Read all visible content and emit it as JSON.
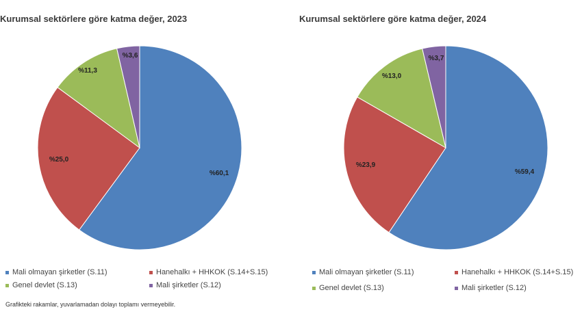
{
  "chart_data": [
    {
      "type": "pie",
      "title": "Kurumsal sektörlere göre katma değer, 2023",
      "categories": [
        "Mali olmayan şirketler (S.11)",
        "Hanehalkı + HHKOK (S.14+S.15)",
        "Genel devlet (S.13)",
        "Mali şirketler (S.12)"
      ],
      "values": [
        60.1,
        25.0,
        11.3,
        3.6
      ],
      "labels": [
        "%60,1",
        "%25,0",
        "%11,3",
        "%3,6"
      ],
      "colors": [
        "#4f81bd",
        "#c0504d",
        "#9bbb59",
        "#8064a2"
      ],
      "legend": "bottom"
    },
    {
      "type": "pie",
      "title": "Kurumsal sektörlere göre katma değer, 2024",
      "categories": [
        "Mali olmayan şirketler (S.11)",
        "Hanehalkı + HHKOK (S.14+S.15)",
        "Genel devlet (S.13)",
        "Mali şirketler (S.12)"
      ],
      "values": [
        59.4,
        23.9,
        13.0,
        3.7
      ],
      "labels": [
        "%59,4",
        "%23,9",
        "%13,0",
        "%3,7"
      ],
      "colors": [
        "#4f81bd",
        "#c0504d",
        "#9bbb59",
        "#8064a2"
      ],
      "legend": "bottom"
    }
  ],
  "legend_left": [
    "Mali olmayan şirketler (S.11)",
    "Hanehalkı + HHKOK (S.14+S.15)",
    "Genel devlet (S.13)",
    "Mali şirketler (S.12)"
  ],
  "legend_right": [
    "Mali olmayan şirketler (S.11)",
    "Hanehalkı + HHKOK (S.14+S.15)",
    "Genel devlet (S.13)",
    "Mali şirketler (S.12)"
  ],
  "footnote": "Grafikteki rakamlar, yuvarlamadan dolayı toplamı vermeyebilir."
}
